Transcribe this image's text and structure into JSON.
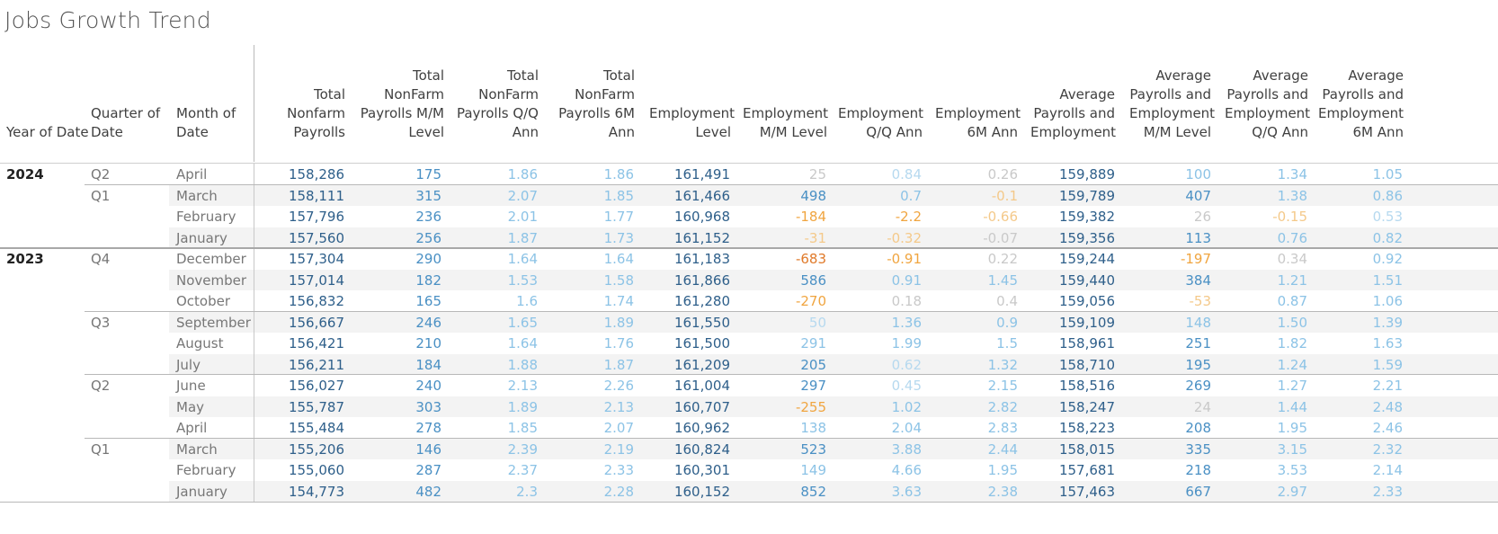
{
  "title": "Jobs Growth Trend",
  "colors": {
    "dark_blue": "#2e5f8a",
    "mid_blue": "#4a90c4",
    "light_blue": "#8cc3e6",
    "pale_blue": "#b6d9ef",
    "faint_gray": "#c9c9c9",
    "orange_strong": "#e07a2a",
    "orange_mid": "#f0a540",
    "orange_light": "#f4c98a"
  },
  "headers": [
    "Year of Date",
    "Quarter of Date",
    "Month of Date",
    "Total Nonfarm Payrolls",
    "Total NonFarm Payrolls M/M Level",
    "Total NonFarm Payrolls Q/Q Ann",
    "Total NonFarm Payrolls 6M Ann",
    "Employment Level",
    "Employment M/M Level",
    "Employment Q/Q Ann",
    "Employment 6M Ann",
    "Average Payrolls and Employment",
    "Average Payrolls and Employment M/M Level",
    "Average Payrolls and Employment Q/Q Ann",
    "Average Payrolls and Employment 6M Ann"
  ],
  "rows": [
    {
      "year": "2024",
      "quarter": "Q2",
      "month": "April",
      "vals": [
        "158,286",
        "175",
        "1.86",
        "1.86",
        "161,491",
        "25",
        "0.84",
        "0.26",
        "159,889",
        "100",
        "1.34",
        "1.05"
      ]
    },
    {
      "year": "",
      "quarter": "Q1",
      "month": "March",
      "vals": [
        "158,111",
        "315",
        "2.07",
        "1.85",
        "161,466",
        "498",
        "0.7",
        "-0.1",
        "159,789",
        "407",
        "1.38",
        "0.86"
      ]
    },
    {
      "year": "",
      "quarter": "",
      "month": "February",
      "vals": [
        "157,796",
        "236",
        "2.01",
        "1.77",
        "160,968",
        "-184",
        "-2.2",
        "-0.66",
        "159,382",
        "26",
        "-0.15",
        "0.53"
      ]
    },
    {
      "year": "",
      "quarter": "",
      "month": "January",
      "vals": [
        "157,560",
        "256",
        "1.87",
        "1.73",
        "161,152",
        "-31",
        "-0.32",
        "-0.07",
        "159,356",
        "113",
        "0.76",
        "0.82"
      ]
    },
    {
      "year": "2023",
      "quarter": "Q4",
      "month": "December",
      "vals": [
        "157,304",
        "290",
        "1.64",
        "1.64",
        "161,183",
        "-683",
        "-0.91",
        "0.22",
        "159,244",
        "-197",
        "0.34",
        "0.92"
      ]
    },
    {
      "year": "",
      "quarter": "",
      "month": "November",
      "vals": [
        "157,014",
        "182",
        "1.53",
        "1.58",
        "161,866",
        "586",
        "0.91",
        "1.45",
        "159,440",
        "384",
        "1.21",
        "1.51"
      ]
    },
    {
      "year": "",
      "quarter": "",
      "month": "October",
      "vals": [
        "156,832",
        "165",
        "1.6",
        "1.74",
        "161,280",
        "-270",
        "0.18",
        "0.4",
        "159,056",
        "-53",
        "0.87",
        "1.06"
      ]
    },
    {
      "year": "",
      "quarter": "Q3",
      "month": "September",
      "vals": [
        "156,667",
        "246",
        "1.65",
        "1.89",
        "161,550",
        "50",
        "1.36",
        "0.9",
        "159,109",
        "148",
        "1.50",
        "1.39"
      ]
    },
    {
      "year": "",
      "quarter": "",
      "month": "August",
      "vals": [
        "156,421",
        "210",
        "1.64",
        "1.76",
        "161,500",
        "291",
        "1.99",
        "1.5",
        "158,961",
        "251",
        "1.82",
        "1.63"
      ]
    },
    {
      "year": "",
      "quarter": "",
      "month": "July",
      "vals": [
        "156,211",
        "184",
        "1.88",
        "1.87",
        "161,209",
        "205",
        "0.62",
        "1.32",
        "158,710",
        "195",
        "1.24",
        "1.59"
      ]
    },
    {
      "year": "",
      "quarter": "Q2",
      "month": "June",
      "vals": [
        "156,027",
        "240",
        "2.13",
        "2.26",
        "161,004",
        "297",
        "0.45",
        "2.15",
        "158,516",
        "269",
        "1.27",
        "2.21"
      ]
    },
    {
      "year": "",
      "quarter": "",
      "month": "May",
      "vals": [
        "155,787",
        "303",
        "1.89",
        "2.13",
        "160,707",
        "-255",
        "1.02",
        "2.82",
        "158,247",
        "24",
        "1.44",
        "2.48"
      ]
    },
    {
      "year": "",
      "quarter": "",
      "month": "April",
      "vals": [
        "155,484",
        "278",
        "1.85",
        "2.07",
        "160,962",
        "138",
        "2.04",
        "2.83",
        "158,223",
        "208",
        "1.95",
        "2.46"
      ]
    },
    {
      "year": "",
      "quarter": "Q1",
      "month": "March",
      "vals": [
        "155,206",
        "146",
        "2.39",
        "2.19",
        "160,824",
        "523",
        "3.88",
        "2.44",
        "158,015",
        "335",
        "3.15",
        "2.32"
      ]
    },
    {
      "year": "",
      "quarter": "",
      "month": "February",
      "vals": [
        "155,060",
        "287",
        "2.37",
        "2.33",
        "160,301",
        "149",
        "4.66",
        "1.95",
        "157,681",
        "218",
        "3.53",
        "2.14"
      ]
    },
    {
      "year": "",
      "quarter": "",
      "month": "January",
      "vals": [
        "154,773",
        "482",
        "2.3",
        "2.28",
        "160,152",
        "852",
        "3.63",
        "2.38",
        "157,463",
        "667",
        "2.97",
        "2.33"
      ]
    }
  ],
  "cell_colors": [
    [
      "D",
      "M",
      "L",
      "L",
      "D",
      "F",
      "P",
      "F",
      "D",
      "L",
      "L",
      "L"
    ],
    [
      "D",
      "M",
      "L",
      "L",
      "D",
      "M",
      "L",
      "O3",
      "D",
      "M",
      "L",
      "L"
    ],
    [
      "D",
      "M",
      "L",
      "L",
      "D",
      "O2",
      "O2",
      "O3",
      "D",
      "F",
      "O3",
      "P"
    ],
    [
      "D",
      "M",
      "L",
      "L",
      "D",
      "O3",
      "O3",
      "F",
      "D",
      "M",
      "L",
      "L"
    ],
    [
      "D",
      "M",
      "L",
      "L",
      "D",
      "O1",
      "O2",
      "F",
      "D",
      "O2",
      "F",
      "L"
    ],
    [
      "D",
      "M",
      "L",
      "L",
      "D",
      "M",
      "L",
      "L",
      "D",
      "M",
      "L",
      "L"
    ],
    [
      "D",
      "M",
      "L",
      "L",
      "D",
      "O2",
      "F",
      "F",
      "D",
      "O3",
      "L",
      "L"
    ],
    [
      "D",
      "M",
      "L",
      "L",
      "D",
      "P",
      "L",
      "L",
      "D",
      "L",
      "L",
      "L"
    ],
    [
      "D",
      "M",
      "L",
      "L",
      "D",
      "L",
      "L",
      "L",
      "D",
      "M",
      "L",
      "L"
    ],
    [
      "D",
      "M",
      "L",
      "L",
      "D",
      "M",
      "P",
      "L",
      "D",
      "M",
      "L",
      "L"
    ],
    [
      "D",
      "M",
      "L",
      "L",
      "D",
      "M",
      "P",
      "L",
      "D",
      "M",
      "L",
      "L"
    ],
    [
      "D",
      "M",
      "L",
      "L",
      "D",
      "O2",
      "L",
      "L",
      "D",
      "F",
      "L",
      "L"
    ],
    [
      "D",
      "M",
      "L",
      "L",
      "D",
      "L",
      "L",
      "L",
      "D",
      "M",
      "L",
      "L"
    ],
    [
      "D",
      "M",
      "L",
      "L",
      "D",
      "M",
      "L",
      "L",
      "D",
      "M",
      "L",
      "L"
    ],
    [
      "D",
      "M",
      "L",
      "L",
      "D",
      "L",
      "L",
      "L",
      "D",
      "M",
      "L",
      "L"
    ],
    [
      "D",
      "M",
      "L",
      "L",
      "D",
      "M",
      "L",
      "L",
      "D",
      "M",
      "L",
      "L"
    ]
  ]
}
